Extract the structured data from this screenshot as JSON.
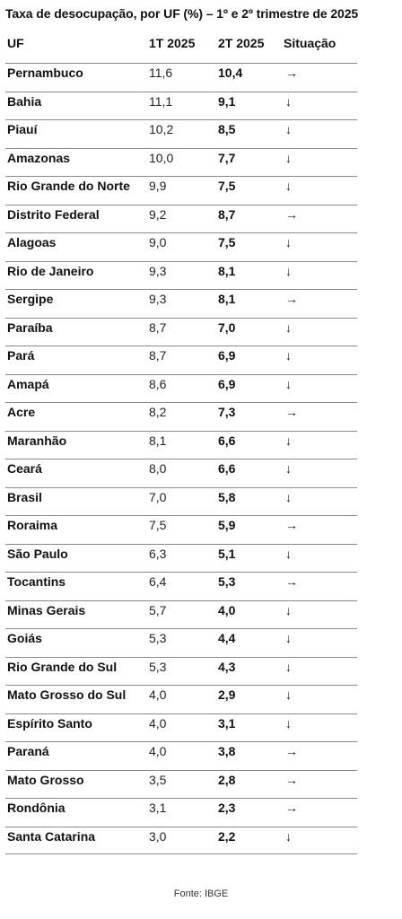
{
  "title": "Taxa de desocupação, por UF (%) – 1º e 2º trimestre de 2025",
  "columns": {
    "uf": "UF",
    "t1": "1T 2025",
    "t2": "2T 2025",
    "situacao": "Situação"
  },
  "rows": [
    {
      "uf": "Pernambuco",
      "t1": "11,6",
      "t2": "10,4",
      "sit": "→"
    },
    {
      "uf": "Bahia",
      "t1": "11,1",
      "t2": "9,1",
      "sit": "↓"
    },
    {
      "uf": "Piauí",
      "t1": "10,2",
      "t2": "8,5",
      "sit": "↓"
    },
    {
      "uf": "Amazonas",
      "t1": "10,0",
      "t2": "7,7",
      "sit": "↓"
    },
    {
      "uf": "Rio Grande do Norte",
      "t1": "9,9",
      "t2": "7,5",
      "sit": "↓"
    },
    {
      "uf": "Distrito Federal",
      "t1": "9,2",
      "t2": "8,7",
      "sit": "→"
    },
    {
      "uf": "Alagoas",
      "t1": "9,0",
      "t2": "7,5",
      "sit": "↓"
    },
    {
      "uf": "Rio de Janeiro",
      "t1": "9,3",
      "t2": "8,1",
      "sit": "↓"
    },
    {
      "uf": "Sergipe",
      "t1": "9,3",
      "t2": "8,1",
      "sit": "→"
    },
    {
      "uf": "Paraíba",
      "t1": "8,7",
      "t2": "7,0",
      "sit": "↓"
    },
    {
      "uf": "Pará",
      "t1": "8,7",
      "t2": "6,9",
      "sit": "↓"
    },
    {
      "uf": "Amapá",
      "t1": "8,6",
      "t2": "6,9",
      "sit": "↓"
    },
    {
      "uf": "Acre",
      "t1": "8,2",
      "t2": "7,3",
      "sit": "→"
    },
    {
      "uf": "Maranhão",
      "t1": "8,1",
      "t2": "6,6",
      "sit": "↓"
    },
    {
      "uf": "Ceará",
      "t1": "8,0",
      "t2": "6,6",
      "sit": "↓"
    },
    {
      "uf": "Brasil",
      "t1": "7,0",
      "t2": "5,8",
      "sit": "↓"
    },
    {
      "uf": "Roraima",
      "t1": "7,5",
      "t2": "5,9",
      "sit": "→"
    },
    {
      "uf": "São Paulo",
      "t1": "6,3",
      "t2": "5,1",
      "sit": "↓"
    },
    {
      "uf": "Tocantins",
      "t1": "6,4",
      "t2": "5,3",
      "sit": "→"
    },
    {
      "uf": "Minas Gerais",
      "t1": "5,7",
      "t2": "4,0",
      "sit": "↓"
    },
    {
      "uf": "Goiás",
      "t1": "5,3",
      "t2": "4,4",
      "sit": "↓"
    },
    {
      "uf": "Rio Grande do Sul",
      "t1": "5,3",
      "t2": "4,3",
      "sit": "↓"
    },
    {
      "uf": "Mato Grosso do Sul",
      "t1": "4,0",
      "t2": "2,9",
      "sit": "↓"
    },
    {
      "uf": "Espírito Santo",
      "t1": "4,0",
      "t2": "3,1",
      "sit": "↓"
    },
    {
      "uf": "Paraná",
      "t1": "4,0",
      "t2": "3,8",
      "sit": "→"
    },
    {
      "uf": "Mato Grosso",
      "t1": "3,5",
      "t2": "2,8",
      "sit": "→"
    },
    {
      "uf": "Rondônia",
      "t1": "3,1",
      "t2": "2,3",
      "sit": "→"
    },
    {
      "uf": "Santa Catarina",
      "t1": "3,0",
      "t2": "2,2",
      "sit": "↓"
    }
  ],
  "source": "Fonte: IBGE"
}
